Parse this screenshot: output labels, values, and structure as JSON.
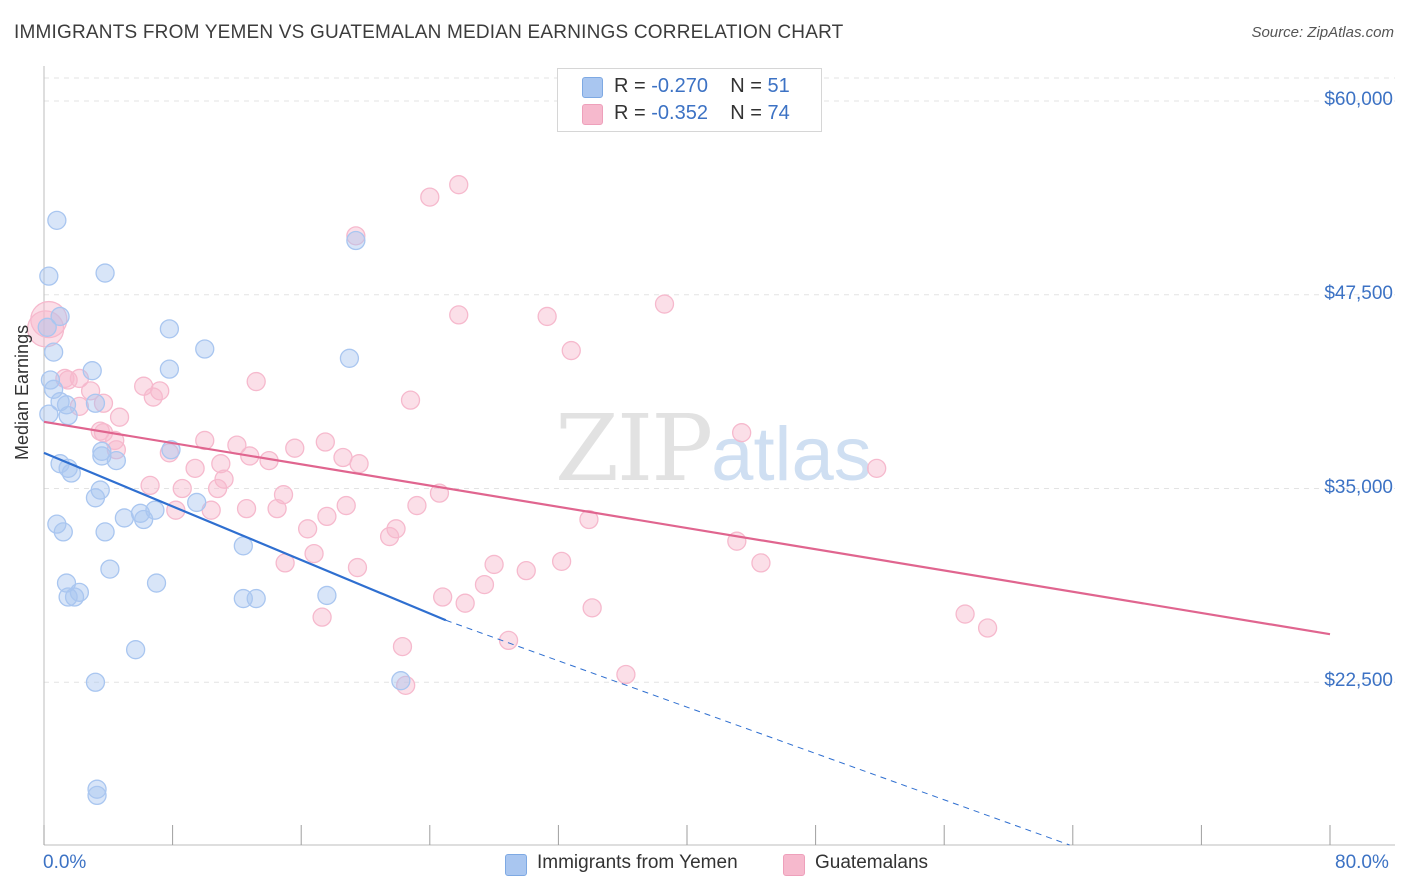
{
  "header": {
    "title": "IMMIGRANTS FROM YEMEN VS GUATEMALAN MEDIAN EARNINGS CORRELATION CHART",
    "source": "Source: ZipAtlas.com"
  },
  "watermark": {
    "zip": "ZIP",
    "atlas": "atlas"
  },
  "legend": {
    "rows": [
      {
        "r_label": "R = ",
        "r_value": "-0.270",
        "n_label": "N = ",
        "n_value": "51",
        "color": "#a9c6f0"
      },
      {
        "r_label": "R = ",
        "r_value": "-0.352",
        "n_label": "N = ",
        "n_value": "74",
        "color": "#f6b9cd"
      }
    ]
  },
  "bottom_legend": {
    "items": [
      {
        "label": "Immigrants from Yemen",
        "color": "#a9c6f0"
      },
      {
        "label": "Guatemalans",
        "color": "#f6b9cd"
      }
    ]
  },
  "chart_data": {
    "type": "scatter",
    "title": "IMMIGRANTS FROM YEMEN VS GUATEMALAN MEDIAN EARNINGS CORRELATION CHART",
    "xlabel": "",
    "ylabel": "Median Earnings",
    "xlim": [
      0,
      80
    ],
    "ylim": [
      12000,
      62000
    ],
    "x_ticks": [
      "0.0%",
      "80.0%"
    ],
    "y_ticks": [
      {
        "value": 22500,
        "label": "$22,500"
      },
      {
        "value": 35000,
        "label": "$35,000"
      },
      {
        "value": 47500,
        "label": "$47,500"
      },
      {
        "value": 60000,
        "label": "$60,000"
      }
    ],
    "grid": "horizontal dashed",
    "legend_position": "top-center",
    "series": [
      {
        "name": "Immigrants from Yemen",
        "color": "#4a86d8",
        "fill": "#a9c6f0",
        "r": -0.27,
        "n": 51,
        "trend": {
          "x0": 0,
          "y0": 37300,
          "x1": 25,
          "y1": 26500,
          "dash_to_x": 63.8,
          "dash_to_y": 12000
        },
        "points": [
          [
            0.8,
            52300
          ],
          [
            0.3,
            48700
          ],
          [
            3.8,
            48900
          ],
          [
            1.0,
            46100
          ],
          [
            0.2,
            45400
          ],
          [
            0.6,
            43800
          ],
          [
            7.8,
            45300
          ],
          [
            10.0,
            44000
          ],
          [
            19.0,
            43400
          ],
          [
            3.0,
            42600
          ],
          [
            7.8,
            42700
          ],
          [
            0.4,
            42000
          ],
          [
            0.6,
            41400
          ],
          [
            1.0,
            40600
          ],
          [
            1.4,
            40400
          ],
          [
            3.2,
            40500
          ],
          [
            0.3,
            39800
          ],
          [
            1.5,
            39700
          ],
          [
            3.6,
            37400
          ],
          [
            3.6,
            37100
          ],
          [
            7.9,
            37500
          ],
          [
            4.5,
            36800
          ],
          [
            1.0,
            36600
          ],
          [
            1.5,
            36300
          ],
          [
            1.7,
            36000
          ],
          [
            3.5,
            34900
          ],
          [
            3.2,
            34400
          ],
          [
            9.5,
            34100
          ],
          [
            6.0,
            33400
          ],
          [
            6.2,
            33000
          ],
          [
            5.0,
            33100
          ],
          [
            6.9,
            33600
          ],
          [
            0.8,
            32700
          ],
          [
            1.2,
            32200
          ],
          [
            3.8,
            32200
          ],
          [
            12.4,
            31300
          ],
          [
            4.1,
            29800
          ],
          [
            1.4,
            28900
          ],
          [
            7.0,
            28900
          ],
          [
            1.5,
            28000
          ],
          [
            1.9,
            28000
          ],
          [
            2.2,
            28300
          ],
          [
            12.4,
            27900
          ],
          [
            13.2,
            27900
          ],
          [
            17.6,
            28100
          ],
          [
            5.7,
            24600
          ],
          [
            3.2,
            22500
          ],
          [
            22.2,
            22600
          ],
          [
            3.3,
            15600
          ],
          [
            3.3,
            15200
          ],
          [
            19.4,
            51000
          ]
        ]
      },
      {
        "name": "Guatemalans",
        "color": "#e0658f",
        "fill": "#f6b9cd",
        "r": -0.352,
        "n": 74,
        "trend": {
          "x0": 0,
          "y0": 39300,
          "x1": 80,
          "y1": 25600
        },
        "points": [
          [
            0.3,
            45900
          ],
          [
            0.1,
            45300
          ],
          [
            25.8,
            54600
          ],
          [
            24.0,
            53800
          ],
          [
            19.4,
            51300
          ],
          [
            38.6,
            46900
          ],
          [
            25.8,
            46200
          ],
          [
            31.3,
            46100
          ],
          [
            32.8,
            43900
          ],
          [
            1.5,
            42000
          ],
          [
            2.2,
            42100
          ],
          [
            13.2,
            41900
          ],
          [
            6.2,
            41600
          ],
          [
            7.2,
            41300
          ],
          [
            2.9,
            41300
          ],
          [
            6.8,
            40900
          ],
          [
            22.8,
            40700
          ],
          [
            2.2,
            40300
          ],
          [
            4.7,
            39600
          ],
          [
            3.5,
            38700
          ],
          [
            3.7,
            38600
          ],
          [
            4.4,
            38100
          ],
          [
            10.0,
            38100
          ],
          [
            17.5,
            38000
          ],
          [
            4.5,
            37500
          ],
          [
            12.0,
            37800
          ],
          [
            15.6,
            37600
          ],
          [
            7.8,
            37300
          ],
          [
            12.8,
            37100
          ],
          [
            18.6,
            37000
          ],
          [
            43.4,
            38600
          ],
          [
            11.0,
            36600
          ],
          [
            9.4,
            36300
          ],
          [
            14.0,
            36800
          ],
          [
            19.6,
            36600
          ],
          [
            51.8,
            36300
          ],
          [
            6.6,
            35200
          ],
          [
            11.2,
            35600
          ],
          [
            8.6,
            35000
          ],
          [
            10.8,
            35000
          ],
          [
            14.9,
            34600
          ],
          [
            24.6,
            34700
          ],
          [
            8.2,
            33600
          ],
          [
            10.4,
            33600
          ],
          [
            12.6,
            33700
          ],
          [
            14.5,
            33700
          ],
          [
            18.8,
            33900
          ],
          [
            23.2,
            33900
          ],
          [
            17.6,
            33200
          ],
          [
            33.9,
            33000
          ],
          [
            16.4,
            32400
          ],
          [
            21.9,
            32400
          ],
          [
            21.5,
            31900
          ],
          [
            43.1,
            31600
          ],
          [
            16.8,
            30800
          ],
          [
            15.0,
            30200
          ],
          [
            19.5,
            29900
          ],
          [
            28.0,
            30100
          ],
          [
            32.2,
            30300
          ],
          [
            30.0,
            29700
          ],
          [
            27.4,
            28800
          ],
          [
            44.6,
            30200
          ],
          [
            24.8,
            28000
          ],
          [
            26.2,
            27600
          ],
          [
            34.1,
            27300
          ],
          [
            17.3,
            26700
          ],
          [
            57.3,
            26900
          ],
          [
            58.7,
            26000
          ],
          [
            22.3,
            24800
          ],
          [
            28.9,
            25200
          ],
          [
            36.2,
            23000
          ],
          [
            22.5,
            22300
          ],
          [
            1.3,
            42100
          ],
          [
            3.7,
            40500
          ]
        ]
      }
    ]
  }
}
